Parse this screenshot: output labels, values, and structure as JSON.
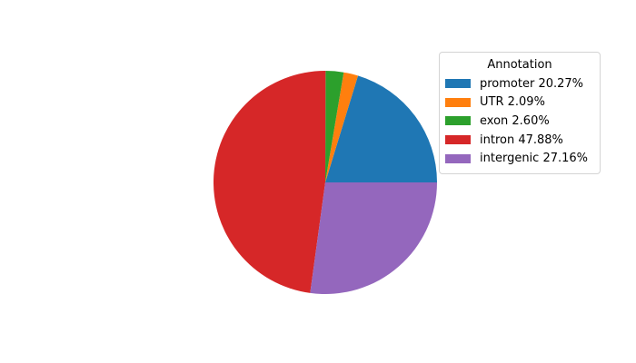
{
  "chart_data": {
    "type": "pie",
    "start_angle": 0,
    "counterclock": true,
    "background": "#ffffff",
    "slices": [
      {
        "label": "promoter",
        "value": 20.27,
        "color": "#1f77b4"
      },
      {
        "label": "UTR",
        "value": 2.09,
        "color": "#ff7f0e"
      },
      {
        "label": "exon",
        "value": 2.6,
        "color": "#2ca02c"
      },
      {
        "label": "intron",
        "value": 47.88,
        "color": "#d62728"
      },
      {
        "label": "intergenic",
        "value": 27.16,
        "color": "#9467bd"
      }
    ],
    "legend": {
      "title": "Annotation",
      "position": "upper right",
      "items": [
        {
          "label": "promoter 20.27%",
          "color": "#1f77b4"
        },
        {
          "label": "UTR 2.09%",
          "color": "#ff7f0e"
        },
        {
          "label": "exon 2.60%",
          "color": "#2ca02c"
        },
        {
          "label": "intron 47.88%",
          "color": "#d62728"
        },
        {
          "label": "intergenic 27.16%",
          "color": "#9467bd"
        }
      ]
    }
  }
}
